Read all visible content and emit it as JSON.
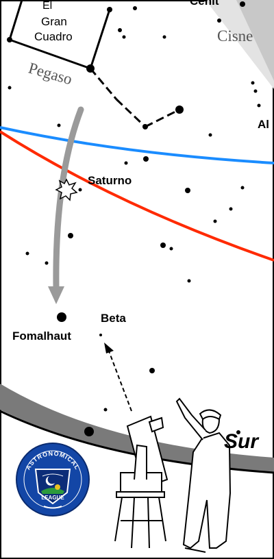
{
  "labels": {
    "el": "El",
    "gran": "Gran",
    "cuadro": "Cuadro",
    "pegaso": "Pegaso",
    "cisne": "Cisne",
    "cenit": "Cenit",
    "al": "Al",
    "saturno": "Saturno",
    "beta": "Beta",
    "fomalhaut": "Fomalhaut",
    "sur": "Sur"
  },
  "logo": {
    "top_text": "ASTRONOMICAL",
    "bottom_text": "LEAGUE"
  },
  "colors": {
    "ecliptic": "#ff2a00",
    "celestial_equator": "#1a8cff",
    "pointer_arrow": "#9a9a9a",
    "horizon_band": "#7a7a7a",
    "milky_way": "#d9d9d9",
    "logo_blue": "#1346a6"
  }
}
